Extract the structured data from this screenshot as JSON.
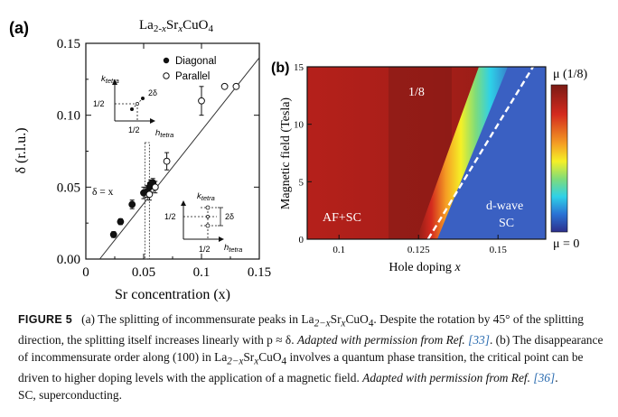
{
  "chart_data": [
    {
      "panel": "(a)",
      "type": "scatter",
      "title": "La2-xSrxCuO4",
      "xlabel": "Sr concentration (x)",
      "ylabel": "δ (r.l.u.)",
      "xlim": [
        0,
        0.15
      ],
      "ylim": [
        0,
        0.15
      ],
      "xticks": [
        "0",
        "0.05",
        "0.1",
        "0.15"
      ],
      "yticks": [
        "0.00",
        "0.05",
        "0.10",
        "0.15"
      ],
      "legend_position": "top-right",
      "series": [
        {
          "name": "Diagonal",
          "marker": "filled",
          "x": [
            0.024,
            0.03,
            0.04,
            0.05,
            0.053,
            0.055,
            0.056,
            0.058
          ],
          "y": [
            0.017,
            0.026,
            0.038,
            0.046,
            0.047,
            0.05,
            0.052,
            0.053
          ],
          "err": [
            0.002,
            0.002,
            0.003,
            0.004,
            0.004,
            0.003,
            0.003,
            0.003
          ]
        },
        {
          "name": "Parallel",
          "marker": "open",
          "x": [
            0.055,
            0.06,
            0.07,
            0.1,
            0.12,
            0.13
          ],
          "y": [
            0.045,
            0.05,
            0.068,
            0.11,
            0.12,
            0.12
          ],
          "err": [
            0.004,
            0.004,
            0.006,
            0.01,
            0.0,
            0.0
          ]
        }
      ],
      "fit_line": {
        "label": "δ = x",
        "x": [
          0.012,
          0.15
        ],
        "y": [
          0.0,
          0.14
        ]
      },
      "dashed_marker_x": 0.053,
      "insets": [
        {
          "xlabel": "h_tetra",
          "ylabel": "k_tetra",
          "tick_x": "1/2",
          "tick_y": "1/2",
          "splitting": "2δ"
        },
        {
          "xlabel": "h_tetra",
          "ylabel": "k_tetra",
          "tick_x": "1/2",
          "tick_y": "1/2",
          "splitting": "2δ"
        }
      ]
    },
    {
      "panel": "(b)",
      "type": "heatmap",
      "xlabel": "Hole doping x",
      "ylabel": "Magnetic field (Tesla)",
      "xticks": [
        "0.1",
        "0.125",
        "0.15"
      ],
      "yticks": [
        "0",
        "5",
        "10",
        "15"
      ],
      "xlim": [
        0.09,
        0.165
      ],
      "ylim": [
        0,
        15
      ],
      "colorbar_top": "μ (1/8)",
      "colorbar_bottom": "μ = 0",
      "critical_line": {
        "x": [
          0.128,
          0.161
        ],
        "y": [
          0,
          15
        ]
      },
      "regions": [
        "AF+SC",
        "1/8",
        "d-wave",
        "SC"
      ]
    }
  ],
  "caption": {
    "label": "FIGURE 5",
    "p1": "(a) The splitting of incommensurate peaks in La",
    "p1_sub1": "2−x",
    "p1_mid": "Sr",
    "p1_sub2": "x",
    "p1_end": "CuO",
    "p1_sub3": "4",
    "p2": ". Despite the rotation by 45° of the splitting direction, the splitting itself increases linearly with p ≈ δ. ",
    "adapted_a": "Adapted with permission from Ref. ",
    "ref_a": "[33]",
    "p3": ". (b) The disappearance of incommensurate order along (100) in La",
    "p3_sub1": "2−x",
    "p3_mid": "Sr",
    "p3_sub2": "x",
    "p3_end": "CuO",
    "p3_sub3": "4",
    "p4": " involves a quantum phase transition, the critical point can be driven to higher doping levels with the application of a magnetic field. ",
    "adapted_b": "Adapted with permission from Ref. ",
    "ref_b": "[36]",
    "p5": ".",
    "p6": "SC, superconducting."
  },
  "colors": {
    "diagonal": "#111111",
    "parallel": "#ffffff",
    "line": "#333333",
    "heat_high": "#7a1a14",
    "heat_low": "#2f4fa8"
  }
}
